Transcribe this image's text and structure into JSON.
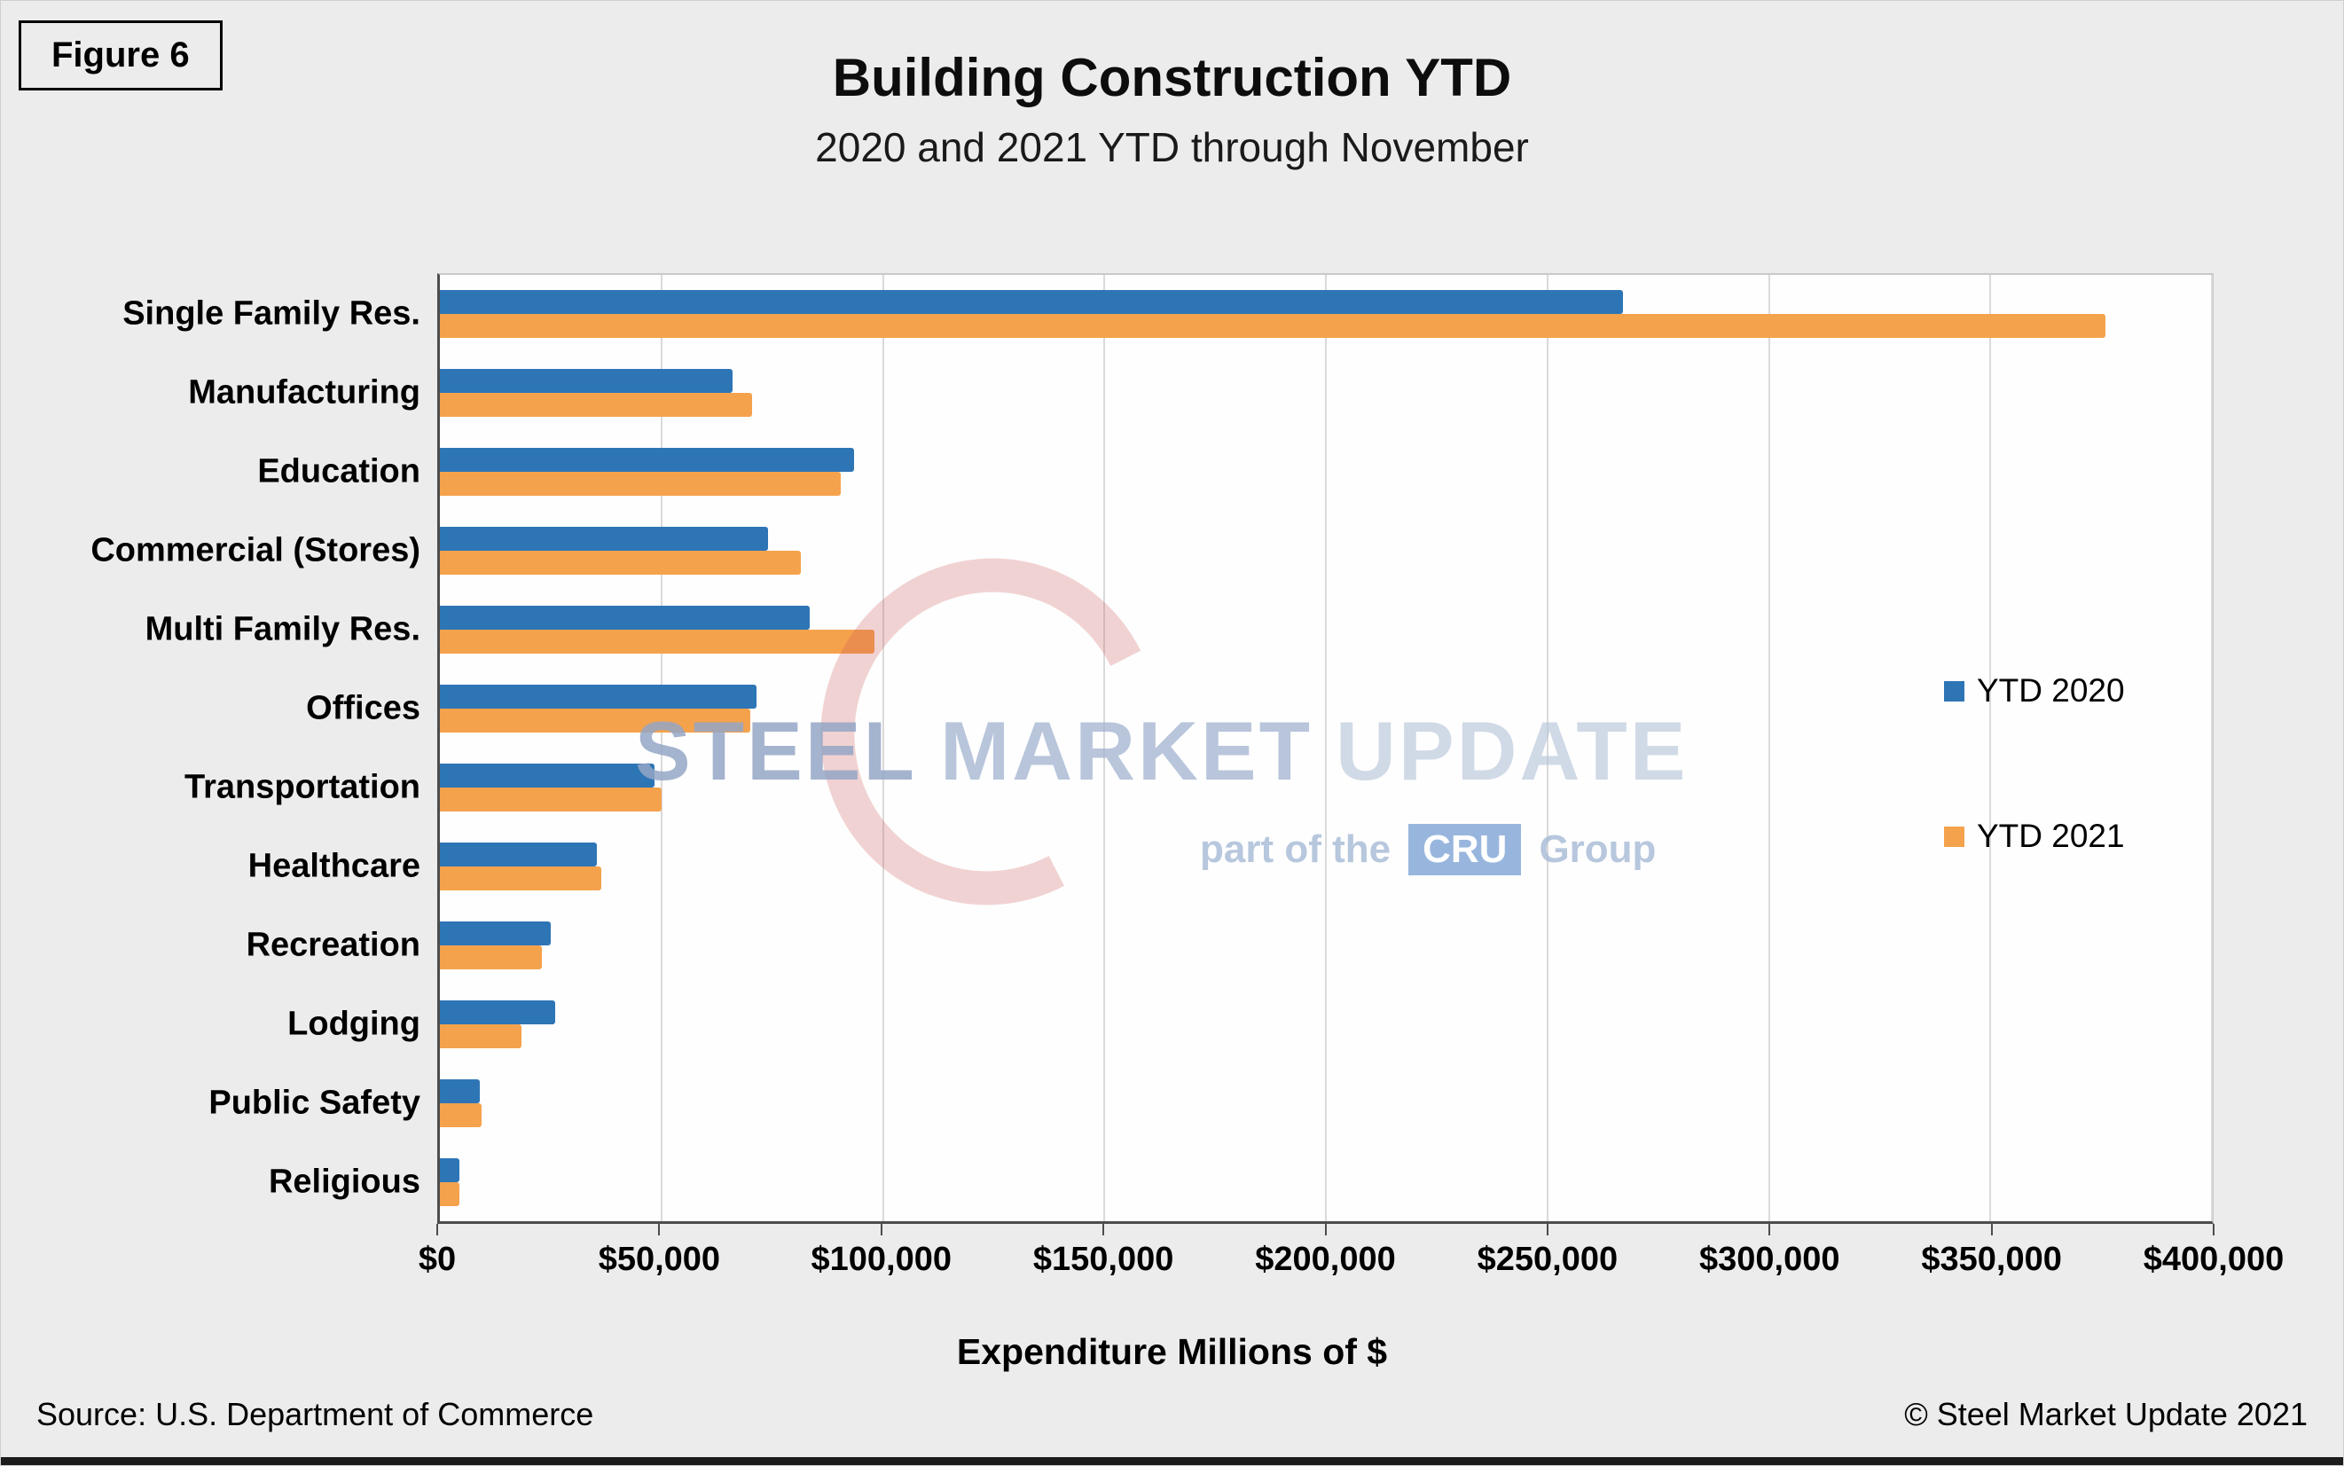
{
  "figure_label": "Figure 6",
  "title": "Building Construction YTD",
  "subtitle": "2020 and 2021 YTD through November",
  "footer": {
    "source": "Source: U.S. Department of Commerce",
    "copyright": "© Steel Market Update 2021"
  },
  "watermark": {
    "word1": "STEEL",
    "word2": "MARKET",
    "word3": "UPDATE",
    "tagline_prefix": "part of the",
    "tagline_logo": "CRU",
    "tagline_suffix": "Group"
  },
  "colors": {
    "ytd2020": "#2E75B6",
    "ytd2021": "#F5A24D",
    "gridline": "#DADADA",
    "background": "#ECECEC"
  },
  "chart_data": {
    "type": "bar",
    "orientation": "horizontal",
    "title": "Building Construction YTD",
    "subtitle": "2020 and 2021 YTD through November",
    "xlabel": "Expenditure Millions of $",
    "ylabel": "",
    "xlim": [
      0,
      400000
    ],
    "grid": true,
    "legend_position": "right-middle",
    "categories": [
      "Single Family Res.",
      "Manufacturing",
      "Education",
      "Commercial (Stores)",
      "Multi Family Res.",
      "Offices",
      "Transportation",
      "Healthcare",
      "Recreation",
      "Lodging",
      "Public Safety",
      "Religious"
    ],
    "series": [
      {
        "name": "YTD 2020",
        "color": "#2E75B6",
        "values": [
          267000,
          66000,
          93500,
          74000,
          83500,
          71500,
          48500,
          35500,
          25000,
          26000,
          9000,
          4500
        ]
      },
      {
        "name": "YTD 2021",
        "color": "#F5A24D",
        "values": [
          376000,
          70500,
          90500,
          81500,
          98000,
          70000,
          50000,
          36500,
          23000,
          18500,
          9500,
          4500
        ]
      }
    ],
    "x_ticks": [
      {
        "value": 0,
        "label": "$0"
      },
      {
        "value": 50000,
        "label": "$50,000"
      },
      {
        "value": 100000,
        "label": "$100,000"
      },
      {
        "value": 150000,
        "label": "$150,000"
      },
      {
        "value": 200000,
        "label": "$200,000"
      },
      {
        "value": 250000,
        "label": "$250,000"
      },
      {
        "value": 300000,
        "label": "$300,000"
      },
      {
        "value": 350000,
        "label": "$350,000"
      },
      {
        "value": 400000,
        "label": "$400,000"
      }
    ]
  }
}
